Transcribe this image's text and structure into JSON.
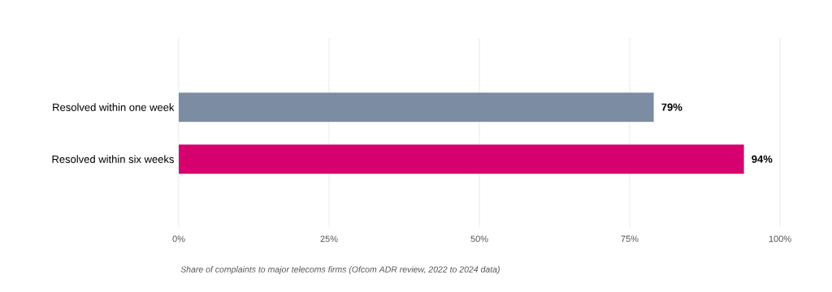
{
  "chart_data": {
    "type": "bar",
    "orientation": "horizontal",
    "categories": [
      "Resolved within one week",
      "Resolved within six weeks"
    ],
    "values": [
      79,
      94
    ],
    "colors": [
      "#7b8ca3",
      "#d6006e"
    ],
    "value_labels": [
      "79%",
      "94%"
    ],
    "xlim": [
      0,
      100
    ],
    "xticks": [
      {
        "value": 0,
        "label": "0%"
      },
      {
        "value": 25,
        "label": "25%"
      },
      {
        "value": 50,
        "label": "50%"
      },
      {
        "value": 75,
        "label": "75%"
      },
      {
        "value": 100,
        "label": "100%"
      }
    ],
    "grid": "x",
    "annotations": [
      "Share of complaints to major telecoms firms (Ofcom ADR review, 2022 to 2024 data)"
    ]
  }
}
